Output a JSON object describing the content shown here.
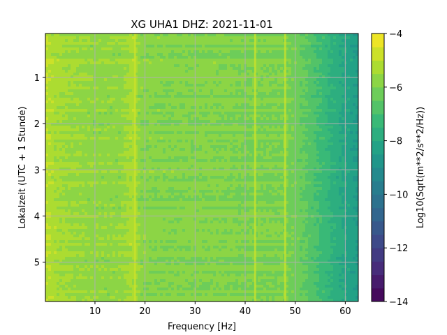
{
  "chart_data": {
    "type": "heatmap",
    "title": "XG UHA1  DHZ: 2021-11-01",
    "xlabel": "Frequency [Hz]",
    "ylabel": "Lokalzeit (UTC + 1 Stunde)",
    "colorbar_label": "Log10(Sqrt(m**2/s**2/Hz))",
    "xlim": [
      0.1,
      62.6
    ],
    "ylim": [
      5.85,
      0.05
    ],
    "y_inverted": true,
    "grid": true,
    "colormap": "viridis",
    "colorbar_levels": 20,
    "x_ticks": [
      10,
      20,
      30,
      40,
      50,
      60
    ],
    "x_tick_labels": [
      "10",
      "20",
      "30",
      "40",
      "50",
      "60"
    ],
    "y_ticks": [
      1,
      2,
      3,
      4,
      5
    ],
    "y_tick_labels": [
      "1",
      "2",
      "3",
      "4",
      "5"
    ],
    "colorbar_range": [
      -14,
      -4
    ],
    "colorbar_ticks": [
      -4,
      -6,
      -8,
      -10,
      -12,
      -14
    ],
    "colorbar_tick_labels": [
      "−4",
      "−6",
      "−8",
      "−10",
      "−12",
      "−14"
    ],
    "frequency_profile": {
      "x": [
        0,
        2,
        5,
        10,
        15,
        17.5,
        18,
        19,
        25,
        30,
        35,
        40,
        45,
        48,
        50,
        52,
        54,
        56,
        58,
        60,
        62.6
      ],
      "values": [
        -5.0,
        -5.3,
        -5.5,
        -5.7,
        -5.7,
        -5.3,
        -5.3,
        -5.8,
        -5.9,
        -5.9,
        -5.9,
        -6.0,
        -6.0,
        -6.0,
        -6.2,
        -6.5,
        -6.9,
        -7.3,
        -7.7,
        -8.1,
        -8.5
      ]
    },
    "features": [
      {
        "x": 18.0,
        "value": -4.6
      },
      {
        "x": 42.0,
        "value": -4.9
      },
      {
        "x": 48.0,
        "value": -5.0
      }
    ]
  }
}
